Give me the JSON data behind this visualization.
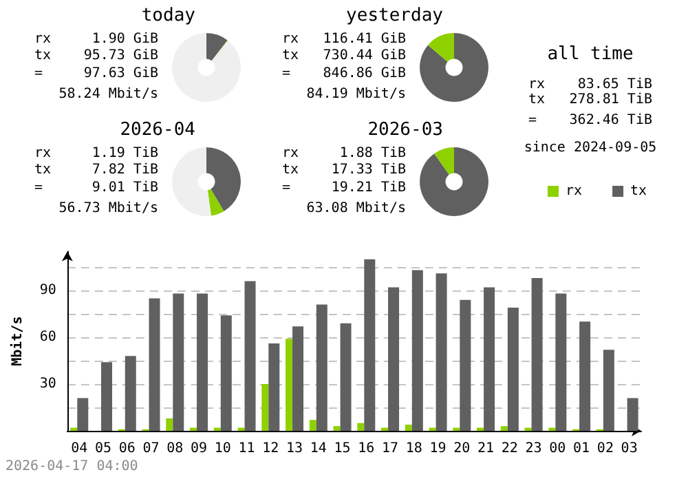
{
  "chart_data": [
    {
      "type": "donut",
      "title": "today",
      "categories": [
        null,
        null,
        null
      ],
      "values": [
        10.5,
        0.2,
        89.3
      ],
      "colors": [
        "#606060",
        "#8fd000",
        "#efefef"
      ],
      "annotations": [
        "rx",
        "1.90 GiB",
        "tx",
        "95.73 GiB",
        "=",
        "97.63 GiB",
        "58.24 Mbit/s"
      ]
    },
    {
      "type": "donut",
      "title": "yesterday",
      "categories": [
        null,
        null
      ],
      "values": [
        86.3,
        13.7
      ],
      "colors": [
        "#606060",
        "#8fd000"
      ],
      "annotations": [
        "rx",
        "116.41 GiB",
        "tx",
        "730.44 GiB",
        "=",
        "846.86 GiB",
        "84.19 Mbit/s"
      ]
    },
    {
      "type": "other",
      "title": "all time",
      "annotations": [
        "rx",
        "83.65 TiB",
        "tx",
        "278.81 TiB",
        "=",
        "362.46 TiB",
        "since 2024-09-05"
      ]
    },
    {
      "type": "donut",
      "title": "2026-04",
      "categories": [
        null,
        null,
        null
      ],
      "values": [
        41.5,
        6.3,
        52.2
      ],
      "colors": [
        "#606060",
        "#8fd000",
        "#efefef"
      ],
      "annotations": [
        "rx",
        "1.19 TiB",
        "tx",
        "7.82 TiB",
        "=",
        "9.01 TiB",
        "56.73 Mbit/s"
      ]
    },
    {
      "type": "donut",
      "title": "2026-03",
      "categories": [
        null,
        null
      ],
      "values": [
        90.2,
        9.8
      ],
      "colors": [
        "#606060",
        "#8fd000"
      ],
      "annotations": [
        "rx",
        "1.88 TiB",
        "tx",
        "17.33 TiB",
        "=",
        "19.21 TiB",
        "63.08 Mbit/s"
      ]
    },
    {
      "type": "bar",
      "ylabel": "Mbit/s",
      "categories": [
        "04",
        "05",
        "06",
        "07",
        "08",
        "09",
        "10",
        "11",
        "12",
        "13",
        "14",
        "15",
        "16",
        "17",
        "18",
        "19",
        "20",
        "21",
        "22",
        "23",
        "00",
        "01",
        "02",
        "03"
      ],
      "series": [
        {
          "name": "rx",
          "color": "#8fd000",
          "values": [
            2,
            0,
            1,
            1,
            8,
            2,
            2,
            2,
            30,
            59,
            7,
            3,
            5,
            2,
            4,
            2,
            2,
            2,
            3,
            2,
            2,
            1,
            1,
            0
          ]
        },
        {
          "name": "tx",
          "color": "#606060",
          "values": [
            21,
            44,
            48,
            85,
            88,
            88,
            74,
            96,
            56,
            67,
            81,
            69,
            110,
            92,
            103,
            101,
            84,
            92,
            79,
            98,
            88,
            70,
            52,
            21
          ]
        }
      ],
      "ylim": [
        0,
        115
      ],
      "yticks": [
        {
          "value": 0,
          "label": null
        },
        {
          "value": 15,
          "label": null
        },
        30,
        {
          "value": 45,
          "label": null
        },
        60,
        {
          "value": 75,
          "label": null
        },
        90,
        {
          "value": 105,
          "label": null
        }
      ],
      "grid": "y",
      "legend": "top right",
      "annotations": [
        "2026-04-17 04:00"
      ]
    }
  ]
}
